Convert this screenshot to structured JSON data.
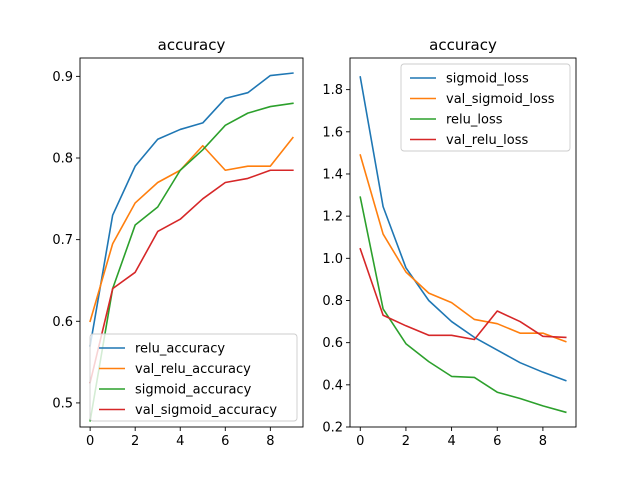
{
  "chart_data": [
    {
      "type": "line",
      "title": "accuracy",
      "xlabel": "",
      "ylabel": "",
      "x": [
        0,
        1,
        2,
        3,
        4,
        5,
        6,
        7,
        8,
        9
      ],
      "xlim": [
        -0.45,
        9.45
      ],
      "ylim": [
        0.4705,
        0.9225
      ],
      "xticks": [
        0,
        2,
        4,
        6,
        8
      ],
      "yticks": [
        0.5,
        0.6,
        0.7,
        0.8,
        0.9
      ],
      "ytick_labels": [
        "0.5",
        "0.6",
        "0.7",
        "0.8",
        "0.9"
      ],
      "grid": false,
      "legend_position": "lower-right",
      "series": [
        {
          "name": "relu_accuracy",
          "color": "#1f77b4",
          "values": [
            0.57,
            0.73,
            0.79,
            0.823,
            0.835,
            0.843,
            0.873,
            0.88,
            0.901,
            0.904
          ]
        },
        {
          "name": "val_relu_accuracy",
          "color": "#ff7f0e",
          "values": [
            0.6,
            0.695,
            0.745,
            0.77,
            0.785,
            0.815,
            0.785,
            0.79,
            0.79,
            0.825
          ]
        },
        {
          "name": "sigmoid_accuracy",
          "color": "#2ca02c",
          "values": [
            0.478,
            0.64,
            0.718,
            0.74,
            0.785,
            0.81,
            0.84,
            0.855,
            0.863,
            0.867
          ]
        },
        {
          "name": "val_sigmoid_accuracy",
          "color": "#d62728",
          "values": [
            0.525,
            0.64,
            0.66,
            0.71,
            0.725,
            0.75,
            0.77,
            0.775,
            0.785,
            0.785
          ]
        }
      ]
    },
    {
      "type": "line",
      "title": "accuracy",
      "xlabel": "",
      "ylabel": "",
      "x": [
        0,
        1,
        2,
        3,
        4,
        5,
        6,
        7,
        8,
        9
      ],
      "xlim": [
        -0.45,
        9.45
      ],
      "ylim": [
        0.2,
        1.95
      ],
      "xticks": [
        0,
        2,
        4,
        6,
        8
      ],
      "yticks": [
        0.2,
        0.4,
        0.6,
        0.8,
        1.0,
        1.2,
        1.4,
        1.6,
        1.8
      ],
      "ytick_labels": [
        "0.2",
        "0.4",
        "0.6",
        "0.8",
        "1.0",
        "1.2",
        "1.4",
        "1.6",
        "1.8"
      ],
      "grid": false,
      "legend_position": "top-right",
      "series": [
        {
          "name": "sigmoid_loss",
          "color": "#1f77b4",
          "values": [
            1.86,
            1.245,
            0.955,
            0.8,
            0.7,
            0.625,
            0.565,
            0.505,
            0.46,
            0.42
          ]
        },
        {
          "name": "val_sigmoid_loss",
          "color": "#ff7f0e",
          "values": [
            1.49,
            1.115,
            0.935,
            0.835,
            0.79,
            0.71,
            0.69,
            0.645,
            0.645,
            0.605
          ]
        },
        {
          "name": "relu_loss",
          "color": "#2ca02c",
          "values": [
            1.29,
            0.76,
            0.595,
            0.51,
            0.44,
            0.435,
            0.365,
            0.335,
            0.3,
            0.27
          ]
        },
        {
          "name": "val_relu_loss",
          "color": "#d62728",
          "values": [
            1.045,
            0.73,
            0.68,
            0.635,
            0.635,
            0.615,
            0.75,
            0.7,
            0.63,
            0.625
          ]
        }
      ]
    }
  ]
}
